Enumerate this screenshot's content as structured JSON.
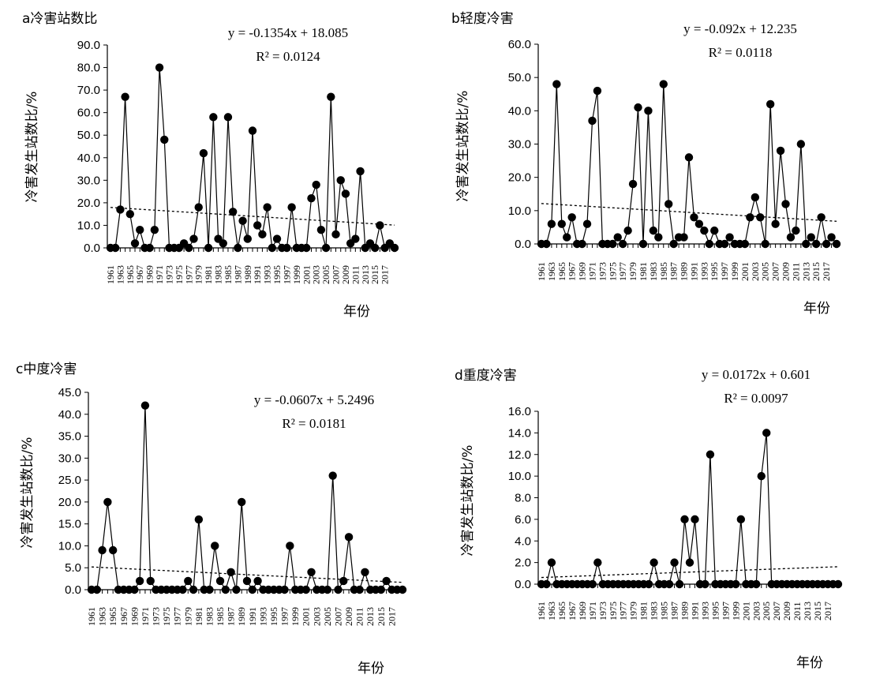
{
  "chart_data": [
    {
      "type": "line",
      "title": "a冷害站数比",
      "xlabel": "年份",
      "ylabel": "冷害发生站数比/%",
      "x_start": 1961,
      "x_end": 2019,
      "ylim": [
        0,
        90
      ],
      "ytick_labels": [
        "0.0",
        "10.0",
        "20.0",
        "30.0",
        "40.0",
        "50.0",
        "60.0",
        "70.0",
        "80.0",
        "90.0"
      ],
      "xtick_labels": [
        "1961",
        "1963",
        "1965",
        "1967",
        "1969",
        "1971",
        "1973",
        "1975",
        "1977",
        "1979",
        "1981",
        "1983",
        "1985",
        "1987",
        "1989",
        "1991",
        "1993",
        "1995",
        "1997",
        "1999",
        "2001",
        "2003",
        "2005",
        "2007",
        "2009",
        "2011",
        "2013",
        "2015",
        "2017"
      ],
      "series": [
        {
          "values": [
            0,
            0,
            17,
            67,
            15,
            2,
            8,
            0,
            0,
            8,
            80,
            48,
            0,
            0,
            0,
            2,
            0,
            4,
            18,
            42,
            0,
            58,
            4,
            2,
            58,
            16,
            0,
            12,
            4,
            52,
            10,
            6,
            18,
            0,
            4,
            0,
            0,
            18,
            0,
            0,
            0,
            22,
            28,
            8,
            0,
            67,
            6,
            30,
            24,
            2,
            4,
            34,
            0,
            2,
            0,
            10,
            0,
            2,
            0
          ]
        }
      ],
      "trend": {
        "equation": "y = -0.1354x + 18.085",
        "r2": "R² = 0.0124",
        "slope": -0.1354,
        "intercept": 18.085
      }
    },
    {
      "type": "line",
      "title": "b轻度冷害",
      "xlabel": "年份",
      "ylabel": "冷害发生站数比/%",
      "x_start": 1961,
      "x_end": 2019,
      "ylim": [
        0,
        60
      ],
      "ytick_labels": [
        "0.0",
        "10.0",
        "20.0",
        "30.0",
        "40.0",
        "50.0",
        "60.0"
      ],
      "xtick_labels": [
        "1961",
        "1963",
        "1965",
        "1967",
        "1969",
        "1971",
        "1973",
        "1975",
        "1977",
        "1979",
        "1981",
        "1983",
        "1985",
        "1987",
        "1989",
        "1991",
        "1993",
        "1995",
        "1997",
        "1999",
        "2001",
        "2003",
        "2005",
        "2007",
        "2009",
        "2011",
        "2013",
        "2015",
        "2017"
      ],
      "series": [
        {
          "values": [
            0,
            0,
            6,
            48,
            6,
            2,
            8,
            0,
            0,
            6,
            37,
            46,
            0,
            0,
            0,
            2,
            0,
            4,
            18,
            41,
            0,
            40,
            4,
            2,
            48,
            12,
            0,
            2,
            2,
            26,
            8,
            6,
            4,
            0,
            4,
            0,
            0,
            2,
            0,
            0,
            0,
            8,
            14,
            8,
            0,
            42,
            6,
            28,
            12,
            2,
            4,
            30,
            0,
            2,
            0,
            8,
            0,
            2,
            0
          ]
        }
      ],
      "trend": {
        "equation": "y = -0.092x + 12.235",
        "r2": "R² = 0.0118",
        "slope": -0.092,
        "intercept": 12.235
      }
    },
    {
      "type": "line",
      "title": "c中度冷害",
      "xlabel": "年份",
      "ylabel": "冷害发生站数比/%",
      "x_start": 1961,
      "x_end": 2019,
      "ylim": [
        0,
        45
      ],
      "ytick_labels": [
        "0.0",
        "5.0",
        "10.0",
        "15.0",
        "20.0",
        "25.0",
        "30.0",
        "35.0",
        "40.0",
        "45.0"
      ],
      "xtick_labels": [
        "1961",
        "1963",
        "1965",
        "1967",
        "1969",
        "1971",
        "1973",
        "1975",
        "1977",
        "1979",
        "1981",
        "1983",
        "1985",
        "1987",
        "1989",
        "1991",
        "1993",
        "1995",
        "1997",
        "1999",
        "2001",
        "2003",
        "2005",
        "2007",
        "2009",
        "2011",
        "2013",
        "2015",
        "2017"
      ],
      "series": [
        {
          "values": [
            0,
            0,
            9,
            20,
            9,
            0,
            0,
            0,
            0,
            2,
            42,
            2,
            0,
            0,
            0,
            0,
            0,
            0,
            2,
            0,
            16,
            0,
            0,
            10,
            2,
            0,
            4,
            0,
            20,
            2,
            0,
            2,
            0,
            0,
            0,
            0,
            0,
            10,
            0,
            0,
            0,
            4,
            0,
            0,
            0,
            26,
            0,
            2,
            12,
            0,
            0,
            4,
            0,
            0,
            0,
            2,
            0,
            0,
            0
          ]
        }
      ],
      "trend": {
        "equation": "y = -0.0607x + 5.2496",
        "r2": "R² = 0.0181",
        "slope": -0.0607,
        "intercept": 5.2496
      }
    },
    {
      "type": "line",
      "title": "d重度冷害",
      "xlabel": "年份",
      "ylabel": "冷害发生站数比/%",
      "x_start": 1961,
      "x_end": 2019,
      "ylim": [
        0,
        16
      ],
      "ytick_labels": [
        "0.0",
        "2.0",
        "4.0",
        "6.0",
        "8.0",
        "10.0",
        "12.0",
        "14.0",
        "16.0"
      ],
      "xtick_labels": [
        "1961",
        "1963",
        "1965",
        "1967",
        "1969",
        "1971",
        "1973",
        "1975",
        "1977",
        "1979",
        "1981",
        "1983",
        "1985",
        "1987",
        "1989",
        "1991",
        "1993",
        "1995",
        "1997",
        "1999",
        "2001",
        "2003",
        "2005",
        "2007",
        "2009",
        "2011",
        "2013",
        "2015",
        "2017"
      ],
      "series": [
        {
          "values": [
            0,
            0,
            2,
            0,
            0,
            0,
            0,
            0,
            0,
            0,
            0,
            2,
            0,
            0,
            0,
            0,
            0,
            0,
            0,
            0,
            0,
            0,
            2,
            0,
            0,
            0,
            2,
            0,
            6,
            2,
            6,
            0,
            0,
            12,
            0,
            0,
            0,
            0,
            0,
            6,
            0,
            0,
            0,
            10,
            14,
            0,
            0,
            0,
            0,
            0,
            0,
            0,
            0,
            0,
            0,
            0,
            0,
            0,
            0
          ]
        }
      ],
      "trend": {
        "equation": "y = 0.0172x + 0.601",
        "r2": "R² = 0.0097",
        "slope": 0.0172,
        "intercept": 0.601
      }
    }
  ]
}
